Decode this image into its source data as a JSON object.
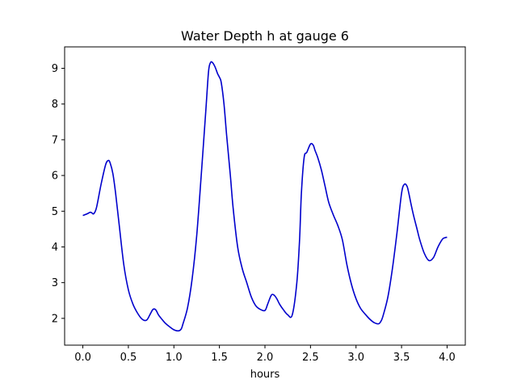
{
  "chart_data": {
    "type": "line",
    "title": "Water Depth h at gauge 6",
    "xlabel": "hours",
    "ylabel": "",
    "xlim": [
      -0.2,
      4.2
    ],
    "ylim": [
      1.25,
      9.6
    ],
    "xticks": [
      0.0,
      0.5,
      1.0,
      1.5,
      2.0,
      2.5,
      3.0,
      3.5,
      4.0
    ],
    "xtick_labels": [
      "0.0",
      "0.5",
      "1.0",
      "1.5",
      "2.0",
      "2.5",
      "3.0",
      "3.5",
      "4.0"
    ],
    "yticks": [
      2,
      3,
      4,
      5,
      6,
      7,
      8,
      9
    ],
    "ytick_labels": [
      "2",
      "3",
      "4",
      "5",
      "6",
      "7",
      "8",
      "9"
    ],
    "grid": false,
    "series": [
      {
        "color": "#0000cc",
        "x": [
          0.0,
          0.05,
          0.08,
          0.1,
          0.12,
          0.15,
          0.2,
          0.25,
          0.28,
          0.3,
          0.33,
          0.36,
          0.4,
          0.45,
          0.5,
          0.55,
          0.6,
          0.65,
          0.7,
          0.74,
          0.77,
          0.8,
          0.83,
          0.86,
          0.9,
          0.95,
          1.0,
          1.05,
          1.08,
          1.1,
          1.15,
          1.2,
          1.25,
          1.3,
          1.35,
          1.38,
          1.4,
          1.42,
          1.45,
          1.48,
          1.5,
          1.52,
          1.55,
          1.58,
          1.62,
          1.65,
          1.7,
          1.75,
          1.8,
          1.85,
          1.9,
          1.95,
          2.0,
          2.03,
          2.07,
          2.1,
          2.13,
          2.16,
          2.2,
          2.25,
          2.3,
          2.35,
          2.38,
          2.4,
          2.43,
          2.46,
          2.5,
          2.53,
          2.55,
          2.58,
          2.62,
          2.66,
          2.7,
          2.75,
          2.8,
          2.85,
          2.9,
          2.95,
          3.0,
          3.05,
          3.1,
          3.15,
          3.2,
          3.25,
          3.28,
          3.3,
          3.35,
          3.4,
          3.45,
          3.5,
          3.53,
          3.56,
          3.58,
          3.6,
          3.63,
          3.67,
          3.7,
          3.75,
          3.8,
          3.85,
          3.9,
          3.95,
          3.98,
          4.0
        ],
        "y": [
          4.88,
          4.93,
          4.97,
          4.95,
          4.93,
          5.1,
          5.75,
          6.3,
          6.42,
          6.35,
          6.05,
          5.5,
          4.6,
          3.5,
          2.8,
          2.4,
          2.15,
          1.98,
          1.95,
          2.12,
          2.25,
          2.24,
          2.1,
          2.0,
          1.88,
          1.77,
          1.68,
          1.65,
          1.7,
          1.85,
          2.3,
          3.1,
          4.3,
          6.0,
          7.8,
          8.9,
          9.15,
          9.17,
          9.05,
          8.85,
          8.75,
          8.6,
          8.0,
          7.1,
          6.0,
          5.1,
          4.0,
          3.4,
          3.0,
          2.6,
          2.35,
          2.25,
          2.22,
          2.4,
          2.65,
          2.65,
          2.55,
          2.4,
          2.25,
          2.1,
          2.1,
          3.0,
          4.2,
          5.5,
          6.5,
          6.65,
          6.88,
          6.85,
          6.7,
          6.5,
          6.15,
          5.7,
          5.25,
          4.9,
          4.6,
          4.2,
          3.5,
          2.95,
          2.55,
          2.28,
          2.12,
          1.98,
          1.88,
          1.85,
          1.95,
          2.1,
          2.6,
          3.4,
          4.4,
          5.5,
          5.75,
          5.7,
          5.5,
          5.25,
          4.9,
          4.5,
          4.2,
          3.82,
          3.62,
          3.7,
          4.0,
          4.22,
          4.26,
          4.27
        ]
      }
    ]
  }
}
